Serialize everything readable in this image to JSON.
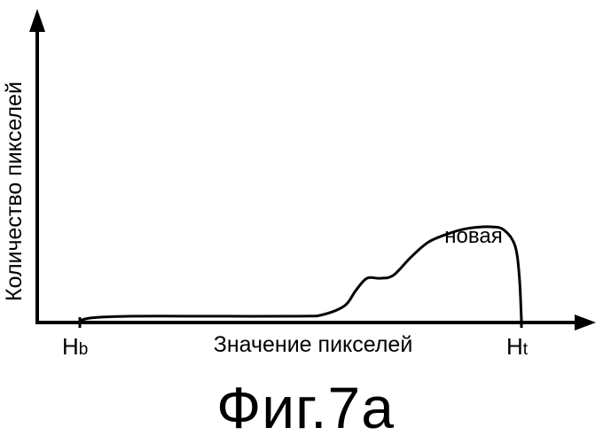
{
  "chart_data": {
    "type": "line",
    "title": "",
    "xlabel": "Значение пикселей",
    "ylabel": "Количество пикселей",
    "xlim": [
      0,
      1
    ],
    "ylim": [
      0,
      1
    ],
    "grid": false,
    "legend": "none",
    "x_ticks": [
      {
        "value": 0,
        "main": "H",
        "sub": "b"
      },
      {
        "value": 1,
        "main": "H",
        "sub": "t"
      }
    ],
    "series": [
      {
        "name": "новая",
        "x": [
          0.0,
          0.03,
          0.12,
          0.3,
          0.5,
          0.55,
          0.6,
          0.625,
          0.65,
          0.68,
          0.71,
          0.75,
          0.79,
          0.84,
          0.88,
          0.93,
          0.96,
          0.985,
          0.995,
          1.0
        ],
        "y": [
          0.0,
          0.01,
          0.015,
          0.015,
          0.015,
          0.02,
          0.05,
          0.1,
          0.14,
          0.14,
          0.15,
          0.21,
          0.26,
          0.29,
          0.305,
          0.31,
          0.3,
          0.25,
          0.15,
          0.0
        ]
      }
    ]
  },
  "caption": "Фиг.7a"
}
